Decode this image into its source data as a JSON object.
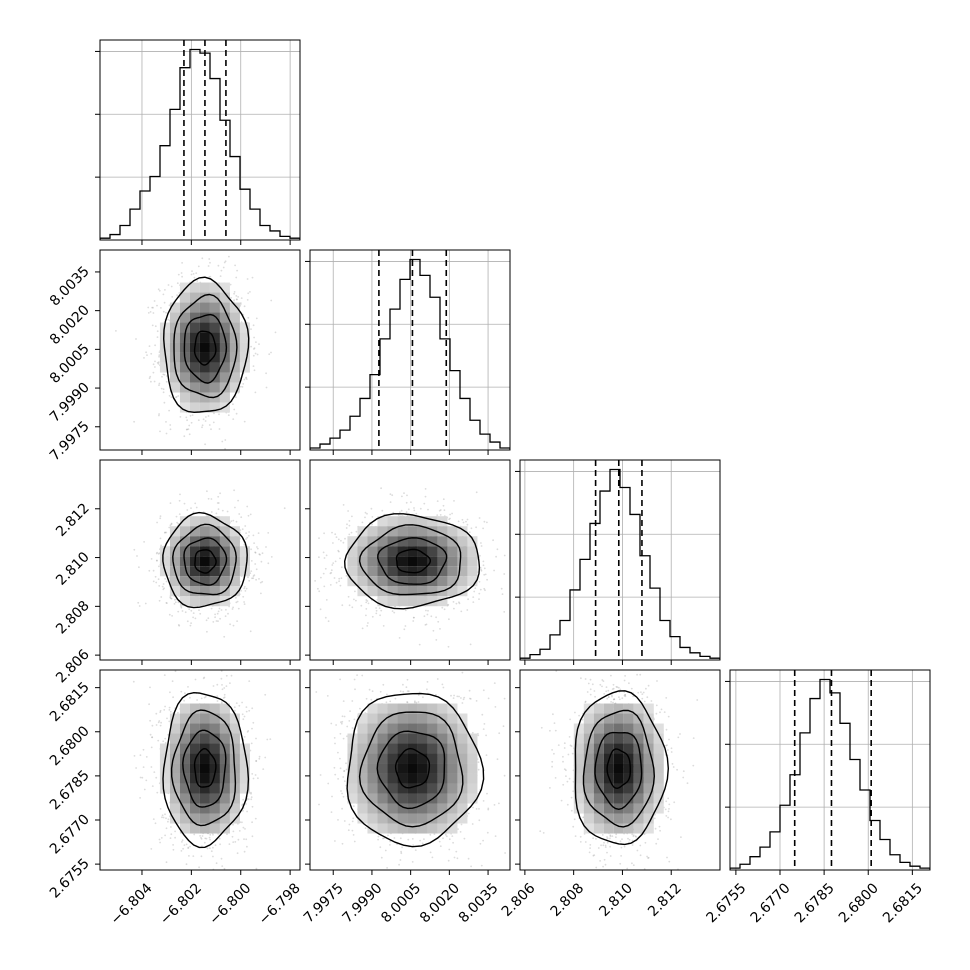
{
  "chart_data": {
    "type": "corner",
    "grid": true,
    "style": {
      "hist_color": "#000000",
      "quantile_line_color": "#000000",
      "scatter_color": "#9a9a9a",
      "grid_color": "#b0b0b0"
    },
    "parameters": [
      {
        "index": 0,
        "range": [
          -6.8057,
          -6.7976
        ],
        "ticks": [
          -6.804,
          -6.802,
          -6.8,
          -6.798
        ],
        "tick_labels": [
          "−6.804",
          "−6.802",
          "−6.800",
          "−6.798"
        ],
        "quantiles": [
          -6.8023,
          -6.80145,
          -6.8006
        ],
        "median": -6.80145,
        "sigma": 0.00085
      },
      {
        "index": 1,
        "range": [
          7.9966,
          8.00435
        ],
        "ticks": [
          7.9975,
          7.999,
          8.0005,
          8.002,
          8.0035
        ],
        "tick_labels": [
          "7.9975",
          "7.9990",
          "8.0005",
          "8.0020",
          "8.0035"
        ],
        "quantiles": [
          7.99927,
          8.00057,
          8.00188
        ],
        "median": 8.00057,
        "sigma": 0.0013
      },
      {
        "index": 2,
        "range": [
          2.8058,
          2.814
        ],
        "ticks": [
          2.806,
          2.808,
          2.81,
          2.812
        ],
        "tick_labels": [
          "2.806",
          "2.808",
          "2.810",
          "2.812"
        ],
        "quantiles": [
          2.8089,
          2.80985,
          2.8108
        ],
        "median": 2.80985,
        "sigma": 0.00095
      },
      {
        "index": 3,
        "range": [
          2.6753,
          2.6821
        ],
        "ticks": [
          2.6755,
          2.677,
          2.6785,
          2.68,
          2.6815
        ],
        "tick_labels": [
          "2.6755",
          "2.6770",
          "2.6785",
          "2.6800",
          "2.6815"
        ],
        "quantiles": [
          2.6775,
          2.67875,
          2.6801
        ],
        "median": 2.67875,
        "sigma": 0.0013
      }
    ],
    "histograms": [
      {
        "param": 0,
        "counts": [
          1,
          3,
          8,
          17,
          27,
          35,
          52,
          72,
          95,
          105,
          103,
          89,
          66,
          46,
          28,
          17,
          8,
          5,
          2,
          1
        ]
      },
      {
        "param": 1,
        "counts": [
          1,
          3,
          6,
          10,
          17,
          26,
          38,
          56,
          71,
          86,
          96,
          88,
          77,
          56,
          40,
          26,
          15,
          8,
          4,
          1
        ]
      },
      {
        "param": 2,
        "counts": [
          1,
          3,
          6,
          14,
          22,
          39,
          56,
          76,
          94,
          106,
          96,
          81,
          58,
          40,
          22,
          13,
          7,
          4,
          2,
          1
        ]
      },
      {
        "param": 3,
        "counts": [
          1,
          3,
          7,
          12,
          20,
          34,
          50,
          72,
          90,
          100,
          93,
          77,
          58,
          42,
          26,
          16,
          8,
          4,
          2,
          1
        ]
      }
    ],
    "pairs": [
      {
        "x_param": 0,
        "y_param": 1
      },
      {
        "x_param": 0,
        "y_param": 2
      },
      {
        "x_param": 1,
        "y_param": 2
      },
      {
        "x_param": 0,
        "y_param": 3
      },
      {
        "x_param": 1,
        "y_param": 3
      },
      {
        "x_param": 2,
        "y_param": 3
      }
    ]
  }
}
